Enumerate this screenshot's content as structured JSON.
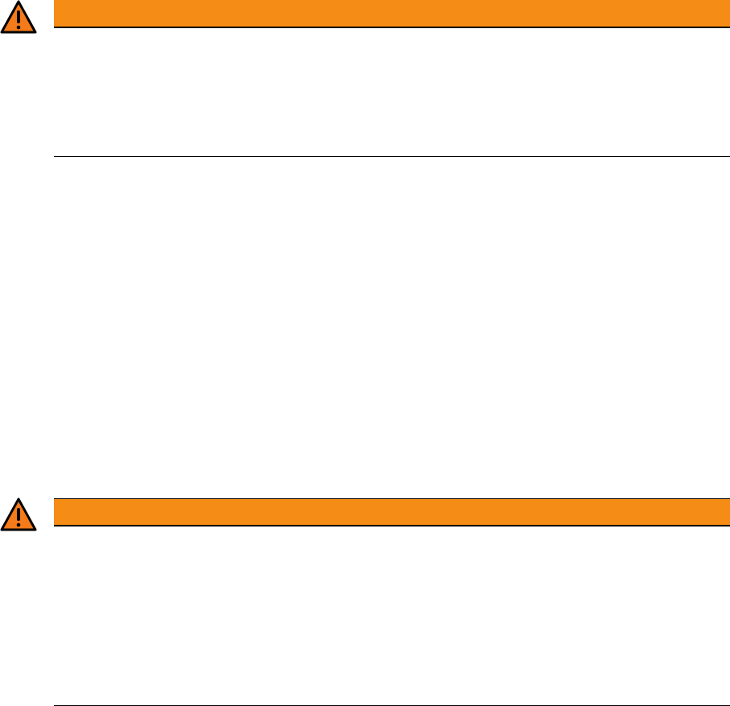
{
  "colors": {
    "warning_bar": "#f48c16",
    "warning_icon_fill": "#f47a1a",
    "rule": "#000000"
  },
  "notices": [
    {
      "icon": "warning-triangle-icon"
    },
    {
      "icon": "warning-triangle-icon"
    }
  ]
}
